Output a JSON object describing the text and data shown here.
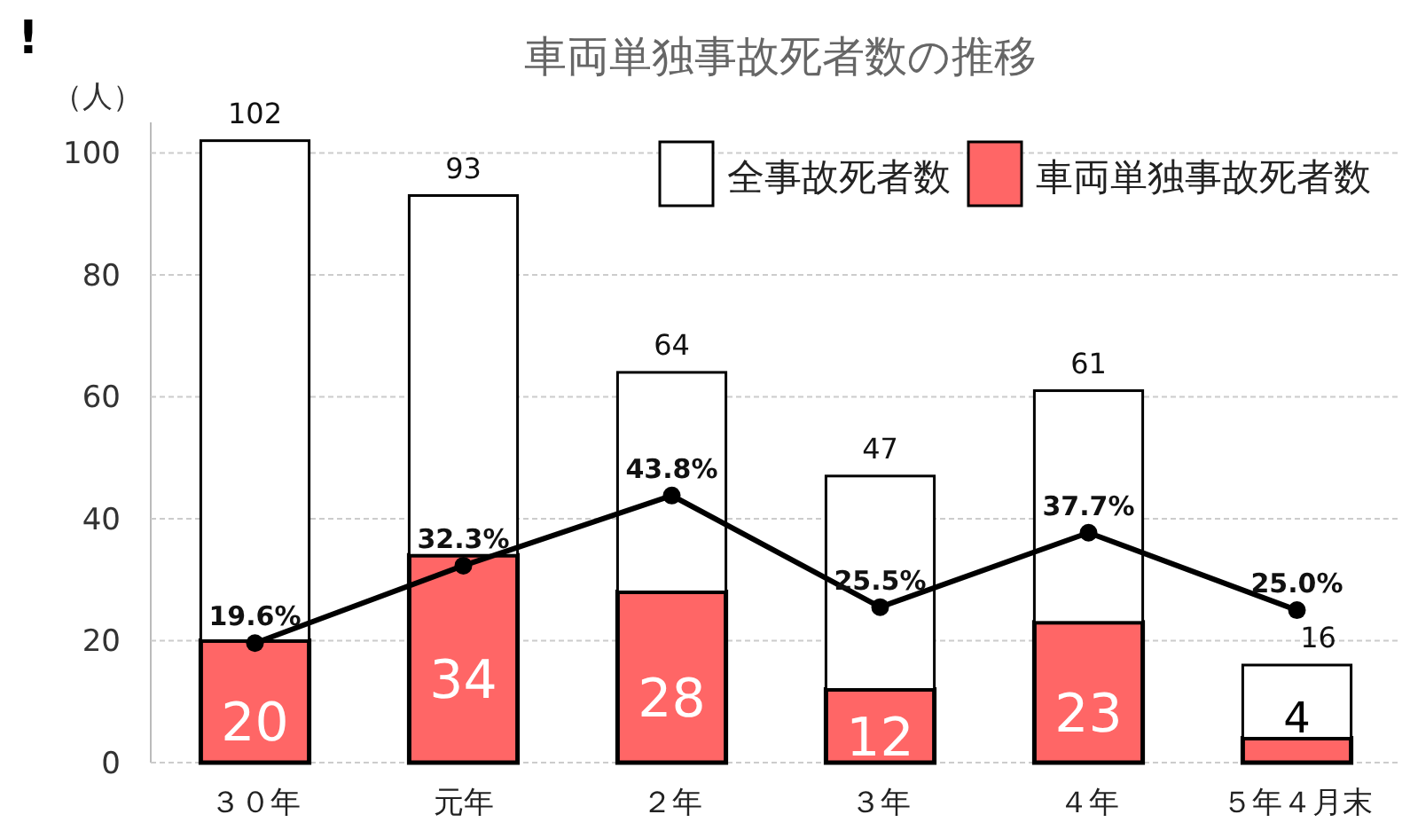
{
  "chart_data": {
    "type": "bar",
    "title": "車両単独事故死者数の推移",
    "ylabel": "（人）",
    "annotations": [
      "!"
    ],
    "categories": [
      "３０年",
      "元年",
      "２年",
      "３年",
      "４年",
      "５年４月末"
    ],
    "stacked": true,
    "series": [
      {
        "name": "車両単独事故死者数",
        "color": "#ff6666",
        "values": [
          20,
          34,
          28,
          12,
          23,
          4
        ],
        "value_labels": [
          "20",
          "34",
          "28",
          "12",
          "23",
          "4"
        ]
      },
      {
        "name": "全事故死者数",
        "color": "#ffffff",
        "values": [
          82,
          59,
          36,
          35,
          38,
          12
        ]
      },
      {
        "type": "line",
        "color": "#000000",
        "marker": "circle",
        "values": [
          19.6,
          32.3,
          43.8,
          25.5,
          37.7,
          25.0
        ],
        "value_labels": [
          "19.6%",
          "32.3%",
          "43.8%",
          "25.5%",
          "37.7%",
          "25.0%"
        ]
      }
    ],
    "totals": [
      "102",
      "93",
      "64",
      "47",
      "61",
      "16"
    ],
    "ylim": [
      0,
      105
    ],
    "yticks": [
      0,
      20,
      40,
      60,
      80,
      100
    ],
    "grid": "y",
    "legend": "top right"
  }
}
